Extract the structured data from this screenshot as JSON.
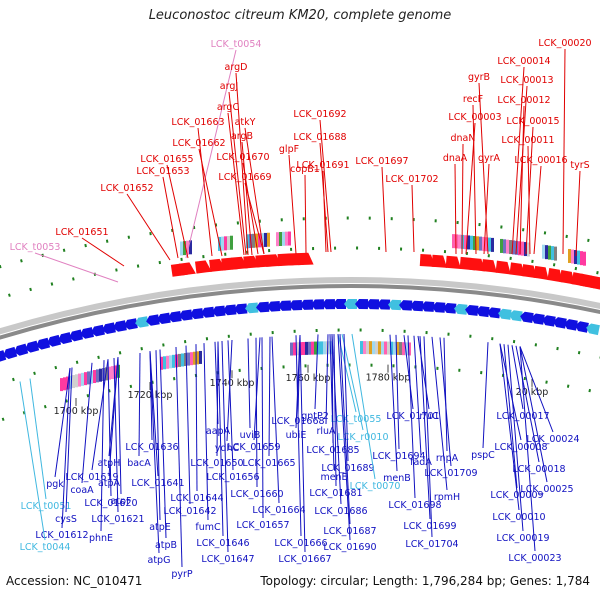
{
  "title": "Leuconostoc citreum KM20, complete genome",
  "footer": {
    "accession": "Accession: NC_010471",
    "summary": "Topology: circular; Length: 1,796,284 bp; Genes: 1,784"
  },
  "colors": {
    "label_red": "#e00000",
    "label_blue": "#1010c0",
    "label_pink": "#e080c0",
    "label_cyan": "#40b8e0",
    "backbone": "#8a8a8a",
    "tick_green": "#208020"
  },
  "scale_labels": [
    "1700 kbp",
    "1720 kbp",
    "1740 kbp",
    "1760 kbp",
    "1780 kbp",
    "20 kbp"
  ],
  "top_labels": [
    {
      "text": "LCK_t0054",
      "color": "pink"
    },
    {
      "text": "argD",
      "color": "red"
    },
    {
      "text": "argJ",
      "color": "red"
    },
    {
      "text": "argC",
      "color": "red"
    },
    {
      "text": "LCK_01663",
      "color": "red"
    },
    {
      "text": "argB",
      "color": "red"
    },
    {
      "text": "atkY",
      "color": "red"
    },
    {
      "text": "LCK_01692",
      "color": "red"
    },
    {
      "text": "LCK_01662",
      "color": "red"
    },
    {
      "text": "LCK_01688",
      "color": "red"
    },
    {
      "text": "LCK_01655",
      "color": "red"
    },
    {
      "text": "LCK_01670",
      "color": "red"
    },
    {
      "text": "glpF",
      "color": "red"
    },
    {
      "text": "LCK_01653",
      "color": "red"
    },
    {
      "text": "LCK_01669",
      "color": "red"
    },
    {
      "text": "copB1",
      "color": "red"
    },
    {
      "text": "LCK_01691",
      "color": "red"
    },
    {
      "text": "LCK_01697",
      "color": "red"
    },
    {
      "text": "LCK_01652",
      "color": "red"
    },
    {
      "text": "LCK_01702",
      "color": "red"
    },
    {
      "text": "LCK_01651",
      "color": "red"
    },
    {
      "text": "LCK_t0053",
      "color": "pink"
    },
    {
      "text": "LCK_00020",
      "color": "red"
    },
    {
      "text": "LCK_00014",
      "color": "red"
    },
    {
      "text": "gyrB",
      "color": "red"
    },
    {
      "text": "LCK_00013",
      "color": "red"
    },
    {
      "text": "recF",
      "color": "red"
    },
    {
      "text": "LCK_00012",
      "color": "red"
    },
    {
      "text": "LCK_00003",
      "color": "red"
    },
    {
      "text": "LCK_00015",
      "color": "red"
    },
    {
      "text": "dnaN",
      "color": "red"
    },
    {
      "text": "LCK_00011",
      "color": "red"
    },
    {
      "text": "dnaA",
      "color": "red"
    },
    {
      "text": "gyrA",
      "color": "red"
    },
    {
      "text": "LCK_00016",
      "color": "red"
    },
    {
      "text": "tyrS",
      "color": "red"
    }
  ],
  "bottom_labels": [
    {
      "text": "LCK_01668",
      "color": "blue"
    },
    {
      "text": "gntP2",
      "color": "blue"
    },
    {
      "text": "LCK_t0055",
      "color": "cyan"
    },
    {
      "text": "rluC",
      "color": "blue"
    },
    {
      "text": "LCK_01701",
      "color": "blue"
    },
    {
      "text": "LCK_00017",
      "color": "blue"
    },
    {
      "text": "aapA",
      "color": "blue"
    },
    {
      "text": "uviB",
      "color": "blue"
    },
    {
      "text": "ubiE",
      "color": "blue"
    },
    {
      "text": "rluA",
      "color": "blue"
    },
    {
      "text": "LCK_r0010",
      "color": "cyan"
    },
    {
      "text": "pspC",
      "color": "blue"
    },
    {
      "text": "LCK_00024",
      "color": "blue"
    },
    {
      "text": "LCK_01636",
      "color": "blue"
    },
    {
      "text": "ydhC",
      "color": "blue"
    },
    {
      "text": "LCK_01659",
      "color": "blue"
    },
    {
      "text": "LCK_01685",
      "color": "blue"
    },
    {
      "text": "LCK_00008",
      "color": "blue"
    },
    {
      "text": "atpH",
      "color": "blue"
    },
    {
      "text": "bacA",
      "color": "blue"
    },
    {
      "text": "LCK_01650",
      "color": "blue"
    },
    {
      "text": "LCK_01665",
      "color": "blue"
    },
    {
      "text": "LCK_01689",
      "color": "blue"
    },
    {
      "text": "LCK_01694",
      "color": "blue"
    },
    {
      "text": "fadA",
      "color": "blue"
    },
    {
      "text": "LCK_00018",
      "color": "blue"
    },
    {
      "text": "LCK_01619",
      "color": "blue"
    },
    {
      "text": "atpA",
      "color": "blue"
    },
    {
      "text": "LCK_01641",
      "color": "blue"
    },
    {
      "text": "LCK_01656",
      "color": "blue"
    },
    {
      "text": "menE",
      "color": "blue"
    },
    {
      "text": "menB",
      "color": "blue"
    },
    {
      "text": "rnpA",
      "color": "blue"
    },
    {
      "text": "LCK_01709",
      "color": "blue"
    },
    {
      "text": "pgk",
      "color": "blue"
    },
    {
      "text": "coaA",
      "color": "blue"
    },
    {
      "text": "atpF",
      "color": "blue"
    },
    {
      "text": "LCK_01644",
      "color": "blue"
    },
    {
      "text": "LCK_01660",
      "color": "blue"
    },
    {
      "text": "LCK_01681",
      "color": "blue"
    },
    {
      "text": "LCK_t0070",
      "color": "cyan"
    },
    {
      "text": "LCK_00025",
      "color": "blue"
    },
    {
      "text": "LCK_t0051",
      "color": "cyan"
    },
    {
      "text": "LCK_01620",
      "color": "blue"
    },
    {
      "text": "LCK_01642",
      "color": "blue"
    },
    {
      "text": "LCK_01664",
      "color": "blue"
    },
    {
      "text": "LCK_01698",
      "color": "blue"
    },
    {
      "text": "rpmH",
      "color": "blue"
    },
    {
      "text": "LCK_00009",
      "color": "blue"
    },
    {
      "text": "cysS",
      "color": "blue"
    },
    {
      "text": "LCK_01621",
      "color": "blue"
    },
    {
      "text": "atpE",
      "color": "blue"
    },
    {
      "text": "fumC",
      "color": "blue"
    },
    {
      "text": "LCK_01657",
      "color": "blue"
    },
    {
      "text": "LCK_01686",
      "color": "blue"
    },
    {
      "text": "LCK_00010",
      "color": "blue"
    },
    {
      "text": "LCK_01612",
      "color": "blue"
    },
    {
      "text": "phnE",
      "color": "blue"
    },
    {
      "text": "LCK_01687",
      "color": "blue"
    },
    {
      "text": "LCK_01699",
      "color": "blue"
    },
    {
      "text": "LCK_t0044",
      "color": "cyan"
    },
    {
      "text": "atpB",
      "color": "blue"
    },
    {
      "text": "LCK_01646",
      "color": "blue"
    },
    {
      "text": "LCK_01666",
      "color": "blue"
    },
    {
      "text": "LCK_01690",
      "color": "blue"
    },
    {
      "text": "LCK_01704",
      "color": "blue"
    },
    {
      "text": "LCK_00019",
      "color": "blue"
    },
    {
      "text": "atpG",
      "color": "blue"
    },
    {
      "text": "LCK_01647",
      "color": "blue"
    },
    {
      "text": "LCK_01667",
      "color": "blue"
    },
    {
      "text": "LCK_00023",
      "color": "blue"
    },
    {
      "text": "pyrP",
      "color": "blue"
    }
  ]
}
